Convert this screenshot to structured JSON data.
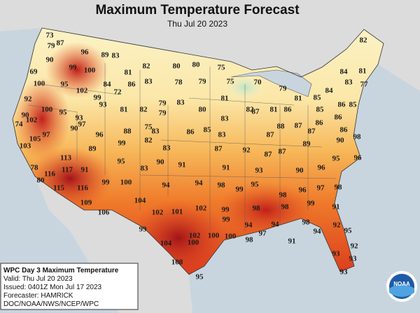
{
  "header": {
    "title": "Maximum Temperature Forecast",
    "subtitle": "Thu Jul 20 2023"
  },
  "temperatures": [
    73,
    87,
    79,
    96,
    89,
    83,
    82,
    90,
    99,
    100,
    82,
    80,
    80,
    75,
    69,
    81,
    84,
    81,
    100,
    95,
    102,
    84,
    86,
    83,
    78,
    79,
    75,
    70,
    79,
    83,
    77,
    72,
    99,
    93,
    81,
    82,
    79,
    83,
    80,
    81,
    83,
    82,
    81,
    86,
    81,
    85,
    85,
    86,
    85,
    84,
    92,
    90,
    100,
    95,
    93,
    97,
    102,
    74,
    97,
    90,
    96,
    88,
    75,
    79,
    83,
    86,
    85,
    83,
    87,
    88,
    87,
    87,
    86,
    86,
    86,
    90,
    103,
    105,
    89,
    99,
    82,
    83,
    87,
    92,
    87,
    87,
    87,
    89,
    98,
    113,
    78,
    116,
    117,
    91,
    95,
    83,
    90,
    91,
    91,
    93,
    90,
    96,
    95,
    96,
    80,
    115,
    116,
    99,
    100,
    94,
    94,
    98,
    99,
    95,
    98,
    96,
    97,
    98,
    109,
    104,
    106,
    102,
    101,
    102,
    99,
    98,
    98,
    99,
    91,
    99,
    94,
    97,
    94,
    98,
    94,
    92,
    99,
    102,
    100,
    100,
    98,
    91,
    104,
    100,
    108,
    95,
    93,
    92,
    93,
    95,
    93
  ],
  "info": [
    "WPC Day 3 Maximum Temperature",
    "Valid: Thu Jul 20 2023",
    "Issued: 0401Z Mon Jul 17 2023",
    "Forecaster: HAMRICK",
    "DOC/NOAA/NWS/NCEP/WPC"
  ],
  "logo": "NOAA"
}
